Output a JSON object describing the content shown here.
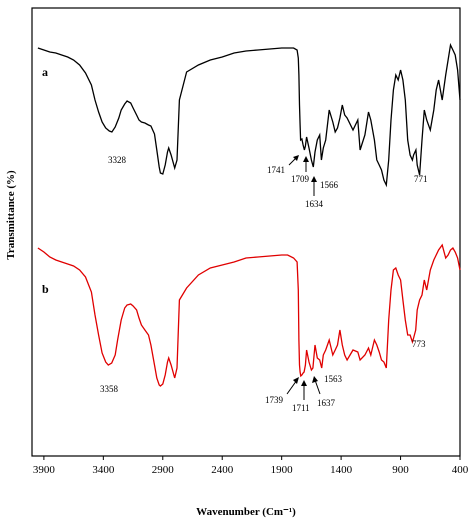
{
  "chart_data": {
    "type": "line",
    "xlabel": "Wavenumber (Cm⁻¹)",
    "ylabel": "Transmittance (%)",
    "x_ticks": [
      3900,
      3400,
      2900,
      2400,
      1900,
      1400,
      900,
      400
    ],
    "x_tick_labels": [
      "3900",
      "3400",
      "2900",
      "2400",
      "1900",
      "1400",
      "900",
      "400"
    ],
    "xlim": [
      4000,
      400
    ],
    "x_reversed": true,
    "y_ticks_shown": false,
    "series": [
      {
        "name": "a",
        "color": "#000000",
        "x": [
          3950,
          3900,
          3850,
          3800,
          3750,
          3700,
          3650,
          3600,
          3550,
          3500,
          3470,
          3440,
          3410,
          3380,
          3350,
          3328,
          3300,
          3270,
          3250,
          3220,
          3200,
          3170,
          3150,
          3120,
          3100,
          3080,
          3050,
          3020,
          3000,
          2970,
          2950,
          2930,
          2920,
          2900,
          2880,
          2860,
          2850,
          2830,
          2800,
          2780,
          2760,
          2700,
          2600,
          2500,
          2400,
          2300,
          2200,
          2100,
          2000,
          1900,
          1850,
          1800,
          1770,
          1760,
          1755,
          1750,
          1745,
          1741,
          1730,
          1720,
          1709,
          1700,
          1690,
          1670,
          1650,
          1634,
          1620,
          1600,
          1580,
          1566,
          1550,
          1530,
          1500,
          1470,
          1450,
          1430,
          1410,
          1390,
          1370,
          1350,
          1300,
          1260,
          1240,
          1200,
          1170,
          1150,
          1120,
          1100,
          1080,
          1060,
          1040,
          1020,
          1000,
          980,
          960,
          940,
          920,
          900,
          880,
          860,
          840,
          820,
          800,
          790,
          771,
          760,
          740,
          720,
          700,
          680,
          650,
          620,
          600,
          580,
          550,
          520,
          500,
          480,
          460,
          440,
          420,
          400
        ],
        "y": [
          48,
          50,
          52,
          53,
          55,
          57,
          60,
          65,
          73,
          85,
          100,
          112,
          122,
          128,
          131,
          132,
          127,
          118,
          110,
          104,
          101,
          103,
          108,
          115,
          120,
          122,
          123,
          125,
          126,
          134,
          150,
          167,
          173,
          174,
          165,
          152,
          148,
          155,
          168,
          160,
          100,
          72,
          65,
          60,
          57,
          53,
          51,
          50,
          49,
          48,
          48,
          48,
          50,
          58,
          75,
          105,
          125,
          140,
          139,
          145,
          150,
          146,
          137,
          148,
          160,
          167,
          152,
          140,
          135,
          160,
          148,
          140,
          110,
          122,
          132,
          128,
          118,
          105,
          115,
          118,
          130,
          120,
          150,
          135,
          112,
          120,
          140,
          160,
          165,
          170,
          180,
          185,
          160,
          120,
          90,
          75,
          80,
          70,
          80,
          100,
          140,
          155,
          160,
          155,
          150,
          165,
          175,
          140,
          110,
          120,
          130,
          110,
          90,
          80,
          100,
          75,
          60,
          45,
          50,
          55,
          70,
          100
        ]
      },
      {
        "name": "b",
        "color": "#e00000",
        "x": [
          3950,
          3900,
          3850,
          3800,
          3750,
          3700,
          3650,
          3600,
          3550,
          3500,
          3470,
          3440,
          3410,
          3380,
          3358,
          3330,
          3300,
          3280,
          3250,
          3220,
          3200,
          3170,
          3150,
          3120,
          3100,
          3080,
          3050,
          3020,
          3000,
          2970,
          2950,
          2930,
          2920,
          2900,
          2880,
          2860,
          2850,
          2830,
          2800,
          2780,
          2760,
          2700,
          2600,
          2500,
          2400,
          2300,
          2200,
          2100,
          2000,
          1900,
          1850,
          1800,
          1770,
          1760,
          1755,
          1750,
          1745,
          1739,
          1730,
          1720,
          1711,
          1700,
          1690,
          1670,
          1650,
          1637,
          1620,
          1600,
          1580,
          1563,
          1550,
          1530,
          1500,
          1470,
          1450,
          1430,
          1410,
          1390,
          1370,
          1350,
          1300,
          1260,
          1240,
          1200,
          1170,
          1150,
          1120,
          1100,
          1080,
          1060,
          1040,
          1020,
          1000,
          980,
          960,
          940,
          920,
          900,
          880,
          860,
          840,
          820,
          800,
          790,
          773,
          760,
          740,
          720,
          700,
          680,
          650,
          620,
          600,
          580,
          550,
          520,
          500,
          480,
          460,
          440,
          420,
          400
        ],
        "y": [
          248,
          252,
          257,
          260,
          262,
          264,
          266,
          270,
          277,
          292,
          315,
          335,
          353,
          362,
          365,
          363,
          355,
          340,
          320,
          308,
          305,
          304,
          306,
          310,
          318,
          325,
          330,
          335,
          345,
          365,
          378,
          385,
          386,
          384,
          375,
          362,
          358,
          365,
          378,
          368,
          300,
          288,
          275,
          268,
          265,
          262,
          258,
          257,
          256,
          255,
          255,
          258,
          262,
          290,
          340,
          365,
          372,
          376,
          375,
          373,
          372,
          365,
          350,
          362,
          370,
          368,
          345,
          358,
          360,
          368,
          355,
          350,
          340,
          355,
          350,
          345,
          330,
          345,
          355,
          360,
          350,
          352,
          360,
          355,
          348,
          355,
          340,
          345,
          352,
          360,
          362,
          368,
          320,
          290,
          270,
          268,
          275,
          280,
          300,
          320,
          335,
          335,
          342,
          338,
          330,
          310,
          300,
          295,
          280,
          290,
          270,
          260,
          255,
          250,
          245,
          258,
          255,
          250,
          248,
          252,
          258,
          270
        ]
      }
    ],
    "annotations": [
      {
        "panel": "a",
        "text": "a"
      },
      {
        "panel": "b",
        "text": "b"
      },
      {
        "series": "a",
        "text": "3328",
        "x": 3328
      },
      {
        "series": "a",
        "text": "1741",
        "x": 1741
      },
      {
        "series": "a",
        "text": "1709",
        "x": 1709
      },
      {
        "series": "a",
        "text": "1634",
        "x": 1634
      },
      {
        "series": "a",
        "text": "1566",
        "x": 1566
      },
      {
        "series": "a",
        "text": "771",
        "x": 771
      },
      {
        "series": "b",
        "text": "3358",
        "x": 3358
      },
      {
        "series": "b",
        "text": "1739",
        "x": 1739
      },
      {
        "series": "b",
        "text": "1711",
        "x": 1711
      },
      {
        "series": "b",
        "text": "1637",
        "x": 1637
      },
      {
        "series": "b",
        "text": "1563",
        "x": 1563
      },
      {
        "series": "b",
        "text": "773",
        "x": 773
      }
    ]
  }
}
